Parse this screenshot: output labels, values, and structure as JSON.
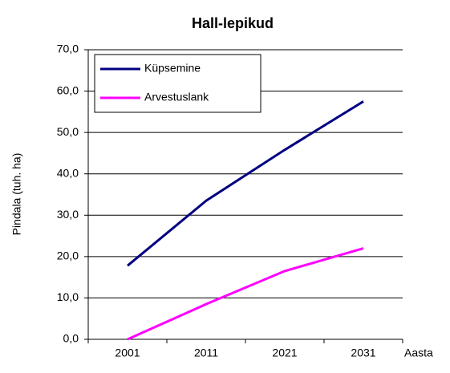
{
  "chart_data": {
    "type": "line",
    "title": "Hall-lepikud",
    "y_label": "Pindala (tuh. ha)",
    "x_label": "Aasta",
    "categories": [
      "2001",
      "2011",
      "2021",
      "2031"
    ],
    "series": [
      {
        "name": "Küpsemine",
        "color": "#000080",
        "values": [
          17.8,
          33.5,
          45.8,
          57.5
        ]
      },
      {
        "name": "Arvestuslank",
        "color": "#ff00ff",
        "values": [
          0,
          8.5,
          16.5,
          22
        ]
      }
    ],
    "ylim": [
      0,
      70
    ],
    "yticks": [
      {
        "value": 0,
        "label": "0,0"
      },
      {
        "value": 10,
        "label": "10,0"
      },
      {
        "value": 20,
        "label": "20,0"
      },
      {
        "value": 30,
        "label": "30,0"
      },
      {
        "value": 40,
        "label": "40,0"
      },
      {
        "value": 50,
        "label": "50,0"
      },
      {
        "value": 60,
        "label": "60,0"
      },
      {
        "value": 70,
        "label": "70,0"
      }
    ],
    "grid": true
  }
}
